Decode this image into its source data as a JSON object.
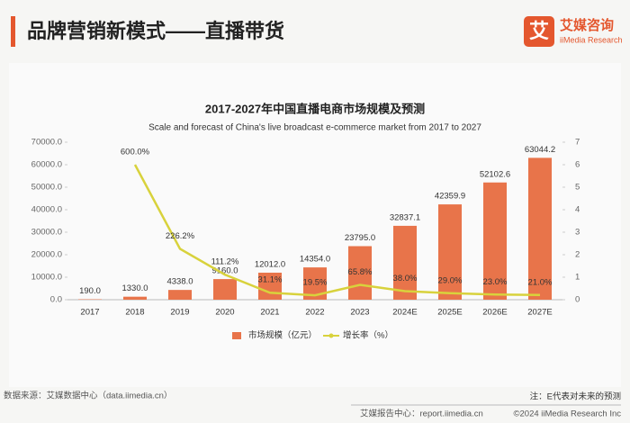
{
  "header": {
    "title": "品牌营销新模式——直播带货",
    "logo_icon": "艾",
    "logo_name": "艾媒咨询",
    "logo_en": "iiMedia Research"
  },
  "chart_data": {
    "type": "bar",
    "title": "2017-2027年中国直播电商市场规模及预测",
    "subtitle": "Scale and forecast of China's live broadcast e-commerce market from 2017 to 2027",
    "categories": [
      "2017",
      "2018",
      "2019",
      "2020",
      "2021",
      "2022",
      "2023",
      "2024E",
      "2025E",
      "2026E",
      "2027E"
    ],
    "series": [
      {
        "name": "市场规模（亿元）",
        "type": "bar",
        "color": "#e8744a",
        "values": [
          190.0,
          1330.0,
          4338.0,
          9160.0,
          12012.0,
          14354.0,
          23795.0,
          32837.1,
          42359.9,
          52102.6,
          63044.2
        ],
        "value_labels": [
          "190.0",
          "1330.0",
          "4338.0",
          "9160.0",
          "12012.0",
          "14354.0",
          "23795.0",
          "32837.1",
          "42359.9",
          "52102.6",
          "63044.2"
        ]
      },
      {
        "name": "增长率（%）",
        "type": "line",
        "axis": "y2",
        "color": "#d8d23c",
        "values": [
          null,
          6.0,
          2.262,
          1.112,
          0.311,
          0.195,
          0.658,
          0.38,
          0.29,
          0.23,
          0.21
        ],
        "value_labels": [
          null,
          "600.0%",
          "226.2%",
          "111.2%",
          "31.1%",
          "19.5%",
          "65.8%",
          "38.0%",
          "29.0%",
          "23.0%",
          "21.0%"
        ]
      }
    ],
    "ylim": [
      0,
      70000
    ],
    "yticks": [
      {
        "value": 0,
        "label": "0.0"
      },
      {
        "value": 10000,
        "label": "10000.0"
      },
      {
        "value": 20000,
        "label": "20000.0"
      },
      {
        "value": 30000,
        "label": "30000.0"
      },
      {
        "value": 40000,
        "label": "40000.0"
      },
      {
        "value": 50000,
        "label": "50000.0"
      },
      {
        "value": 60000,
        "label": "60000.0"
      },
      {
        "value": 70000,
        "label": "70000.0"
      }
    ],
    "y2lim": [
      0,
      7
    ],
    "y2ticks": [
      0,
      1,
      2,
      3,
      4,
      5,
      6,
      7
    ],
    "legend": "bottom"
  },
  "footer": {
    "source": "数据来源：艾媒数据中心（data.iimedia.cn）",
    "note": "注：E代表对未来的预测",
    "report": "艾媒报告中心：report.iimedia.cn",
    "copyright": "©2024 iiMedia Research Inc"
  }
}
